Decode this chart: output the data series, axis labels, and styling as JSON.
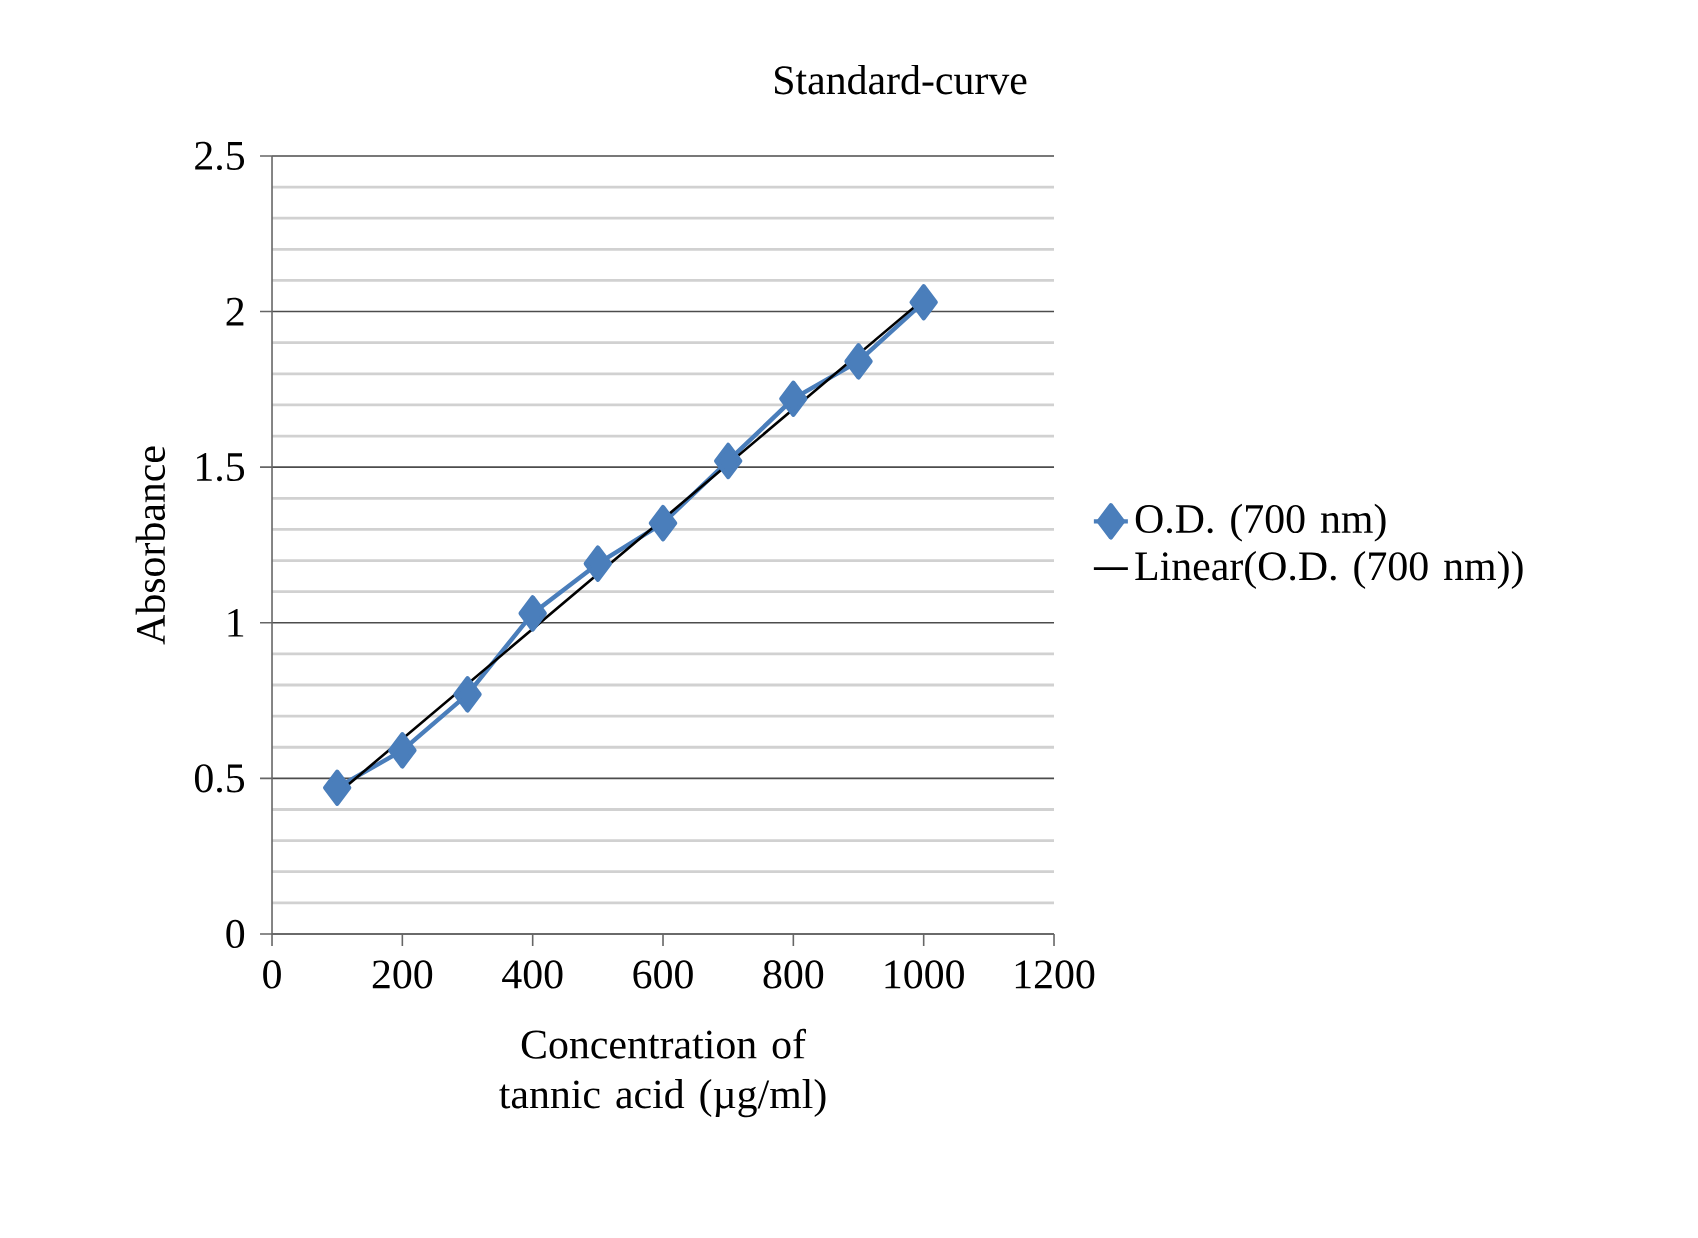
{
  "chart_data": {
    "type": "line",
    "title": "Standard-curve",
    "xlabel": "Concentration of tannic acid (µg/ml)",
    "ylabel": "Absorbance",
    "xlim": [
      0,
      1200
    ],
    "xticks": [
      0,
      200,
      400,
      600,
      800,
      1000,
      1200
    ],
    "ylim": [
      0,
      2.5
    ],
    "yticks": [
      0,
      0.5,
      1,
      1.5,
      2,
      2.5
    ],
    "grid": "y",
    "legend": "right",
    "line_style": "solid",
    "series": [
      {
        "name": "O.D. (700 nm)",
        "color": "#4a7ebb",
        "marker": "diamond",
        "x": [
          100,
          200,
          300,
          400,
          500,
          600,
          700,
          800,
          900,
          1000
        ],
        "values": [
          0.47,
          0.59,
          0.77,
          1.03,
          1.19,
          1.32,
          1.52,
          1.72,
          1.84,
          2.03
        ]
      },
      {
        "name": "Linear(O.D. (700 nm))",
        "color": "#000000",
        "marker": "none",
        "x": [
          100,
          1000
        ],
        "values": [
          0.45,
          2.04
        ]
      }
    ]
  }
}
